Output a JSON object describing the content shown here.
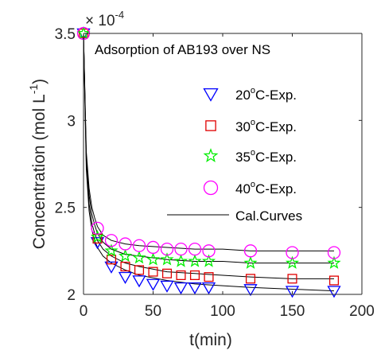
{
  "chart_data": {
    "type": "scatter",
    "title": "Adsorption of AB193 over NS",
    "xlabel": "t(min)",
    "ylabel": "Concentration (mol L⁻¹)",
    "ylabel_main": "Concentration (mol L",
    "ylabel_sup": "-1",
    "ylabel_tail": ")",
    "y_multiplier": "× 10",
    "y_multiplier_exp": "-4",
    "xlim": [
      0,
      200
    ],
    "ylim": [
      2.0,
      3.5
    ],
    "y_scale_note": "values ×10^-4 mol L^-1",
    "xticks": [
      0,
      50,
      100,
      150,
      200
    ],
    "yticks": [
      2,
      2.5,
      3,
      3.5
    ],
    "xtick_labels": [
      "0",
      "50",
      "100",
      "150",
      "200"
    ],
    "ytick_labels": [
      "2",
      "2.5",
      "3",
      "3.5"
    ],
    "grid": false,
    "legend_position": "top-right (inside)",
    "x": [
      0,
      10,
      20,
      30,
      40,
      50,
      60,
      70,
      80,
      90,
      120,
      150,
      180
    ],
    "series": [
      {
        "name": "20°C-Exp.",
        "label_main": "20",
        "label_sup": "o",
        "label_tail": "C-Exp.",
        "marker": "triangle-down",
        "color": "#0000ff",
        "values": [
          3.5,
          2.3,
          2.16,
          2.1,
          2.08,
          2.06,
          2.05,
          2.04,
          2.04,
          2.04,
          2.03,
          2.02,
          2.02
        ]
      },
      {
        "name": "30°C-Exp.",
        "label_main": "30",
        "label_sup": "o",
        "label_tail": "C-Exp.",
        "marker": "square",
        "color": "#e00000",
        "values": [
          3.5,
          2.32,
          2.2,
          2.16,
          2.14,
          2.13,
          2.12,
          2.11,
          2.11,
          2.1,
          2.09,
          2.09,
          2.08
        ]
      },
      {
        "name": "35°C-Exp.",
        "label_main": "35",
        "label_sup": "o",
        "label_tail": "C-Exp.",
        "marker": "star",
        "color": "#00ee00",
        "values": [
          3.5,
          2.33,
          2.25,
          2.22,
          2.21,
          2.2,
          2.2,
          2.19,
          2.19,
          2.19,
          2.18,
          2.18,
          2.18
        ]
      },
      {
        "name": "40°C-Exp.",
        "label_main": "40",
        "label_sup": "o",
        "label_tail": "C-Exp.",
        "marker": "circle",
        "color": "#ff00ff",
        "values": [
          3.5,
          2.38,
          2.31,
          2.29,
          2.28,
          2.27,
          2.26,
          2.26,
          2.26,
          2.25,
          2.25,
          2.24,
          2.24
        ]
      }
    ],
    "fit_curves": {
      "name": "Cal.Curves",
      "color": "#000000",
      "x": [
        0,
        2,
        4,
        6,
        8,
        10,
        14,
        20,
        30,
        40,
        60,
        80,
        100,
        120,
        150,
        180
      ],
      "curves": [
        [
          3.5,
          2.72,
          2.48,
          2.37,
          2.31,
          2.27,
          2.22,
          2.18,
          2.14,
          2.11,
          2.08,
          2.06,
          2.05,
          2.04,
          2.03,
          2.02
        ],
        [
          3.5,
          2.76,
          2.52,
          2.41,
          2.35,
          2.31,
          2.26,
          2.22,
          2.18,
          2.16,
          2.13,
          2.12,
          2.11,
          2.1,
          2.09,
          2.09
        ],
        [
          3.5,
          2.79,
          2.57,
          2.46,
          2.4,
          2.35,
          2.3,
          2.26,
          2.23,
          2.22,
          2.2,
          2.19,
          2.19,
          2.18,
          2.18,
          2.18
        ],
        [
          3.5,
          2.82,
          2.61,
          2.5,
          2.44,
          2.39,
          2.34,
          2.31,
          2.29,
          2.28,
          2.27,
          2.26,
          2.26,
          2.25,
          2.25,
          2.25
        ]
      ]
    }
  }
}
